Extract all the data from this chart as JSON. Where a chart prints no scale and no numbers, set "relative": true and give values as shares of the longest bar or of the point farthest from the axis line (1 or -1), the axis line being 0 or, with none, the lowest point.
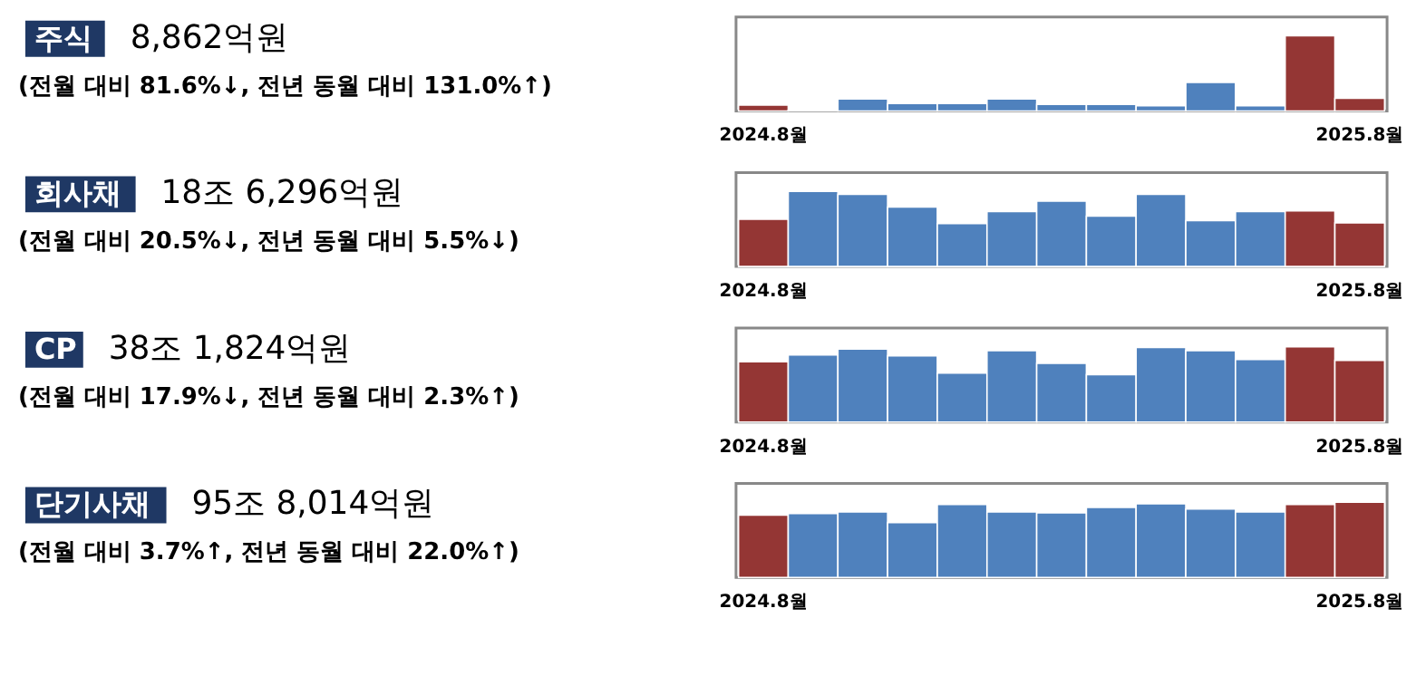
{
  "chart_data": [
    {
      "type": "other",
      "title": "주식",
      "subtitle": "8,862억원",
      "annotations": [
        "(전월 대비 81.6%↓, 전년 동월 대비 131.0%↑)"
      ]
    },
    {
      "type": "bar",
      "relative": true,
      "grid": false,
      "legend": false,
      "categories": [
        "2024.8월",
        null,
        null,
        null,
        null,
        null,
        null,
        null,
        null,
        null,
        null,
        null,
        "2025.8월"
      ],
      "values": [
        0.08,
        0.01,
        0.16,
        0.1,
        0.1,
        0.16,
        0.09,
        0.09,
        0.07,
        0.38,
        0.07,
        1,
        0.17
      ],
      "colors": [
        "#943634",
        "#4f81bd",
        "#4f81bd",
        "#4f81bd",
        "#4f81bd",
        "#4f81bd",
        "#4f81bd",
        "#4f81bd",
        "#4f81bd",
        "#4f81bd",
        "#4f81bd",
        "#943634",
        "#943634"
      ]
    },
    {
      "type": "other",
      "title": "회사채",
      "subtitle": "18조 6,296억원",
      "annotations": [
        "(전월 대비 20.5%↓, 전년 동월 대비 5.5%↓)"
      ]
    },
    {
      "type": "bar",
      "relative": true,
      "grid": false,
      "legend": false,
      "categories": [
        "2024.8월",
        null,
        null,
        null,
        null,
        null,
        null,
        null,
        null,
        null,
        null,
        null,
        "2025.8월"
      ],
      "values": [
        0.63,
        1,
        0.96,
        0.79,
        0.57,
        0.73,
        0.87,
        0.67,
        0.96,
        0.61,
        0.73,
        0.74,
        0.58
      ],
      "colors": [
        "#943634",
        "#4f81bd",
        "#4f81bd",
        "#4f81bd",
        "#4f81bd",
        "#4f81bd",
        "#4f81bd",
        "#4f81bd",
        "#4f81bd",
        "#4f81bd",
        "#4f81bd",
        "#943634",
        "#943634"
      ]
    },
    {
      "type": "other",
      "title": "CP",
      "subtitle": "38조 1,824억원",
      "annotations": [
        "(전월 대비 17.9%↓, 전년 동월 대비 2.3%↑)"
      ]
    },
    {
      "type": "bar",
      "relative": true,
      "grid": false,
      "legend": false,
      "categories": [
        "2024.8월",
        null,
        null,
        null,
        null,
        null,
        null,
        null,
        null,
        null,
        null,
        null,
        "2025.8월"
      ],
      "values": [
        0.8,
        0.89,
        0.97,
        0.88,
        0.65,
        0.95,
        0.78,
        0.63,
        0.99,
        0.95,
        0.83,
        1,
        0.82
      ],
      "colors": [
        "#943634",
        "#4f81bd",
        "#4f81bd",
        "#4f81bd",
        "#4f81bd",
        "#4f81bd",
        "#4f81bd",
        "#4f81bd",
        "#4f81bd",
        "#4f81bd",
        "#4f81bd",
        "#943634",
        "#943634"
      ]
    },
    {
      "type": "other",
      "title": "단기사채",
      "subtitle": "95조 8,014억원",
      "annotations": [
        "(전월 대비 3.7%↑, 전년 동월 대비 22.0%↑)"
      ]
    },
    {
      "type": "bar",
      "relative": true,
      "grid": false,
      "legend": false,
      "categories": [
        "2024.8월",
        null,
        null,
        null,
        null,
        null,
        null,
        null,
        null,
        null,
        null,
        null,
        "2025.8월"
      ],
      "values": [
        0.83,
        0.85,
        0.87,
        0.73,
        0.97,
        0.87,
        0.86,
        0.93,
        0.98,
        0.91,
        0.87,
        0.97,
        1
      ],
      "colors": [
        "#943634",
        "#4f81bd",
        "#4f81bd",
        "#4f81bd",
        "#4f81bd",
        "#4f81bd",
        "#4f81bd",
        "#4f81bd",
        "#4f81bd",
        "#4f81bd",
        "#4f81bd",
        "#943634",
        "#943634"
      ]
    }
  ]
}
